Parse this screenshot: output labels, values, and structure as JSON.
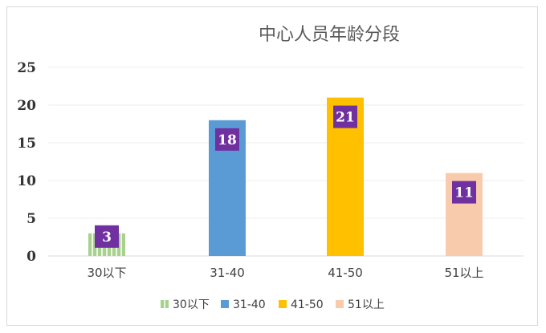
{
  "chart_data": {
    "type": "bar",
    "title": "中心人员年龄分段",
    "categories": [
      "30以下",
      "31-40",
      "41-50",
      "51以上"
    ],
    "values": [
      3,
      18,
      21,
      11
    ],
    "ylim": [
      0,
      25
    ],
    "yticks": [
      0,
      5,
      10,
      15,
      20,
      25
    ],
    "grid": true,
    "legend_position": "bottom",
    "colors": [
      "#a9d18e",
      "#5b9bd5",
      "#ffc000",
      "#f8cbad"
    ],
    "label_bg": "#7030a0",
    "legend": [
      "30以下",
      "31-40",
      "41-50",
      "51以上"
    ]
  }
}
